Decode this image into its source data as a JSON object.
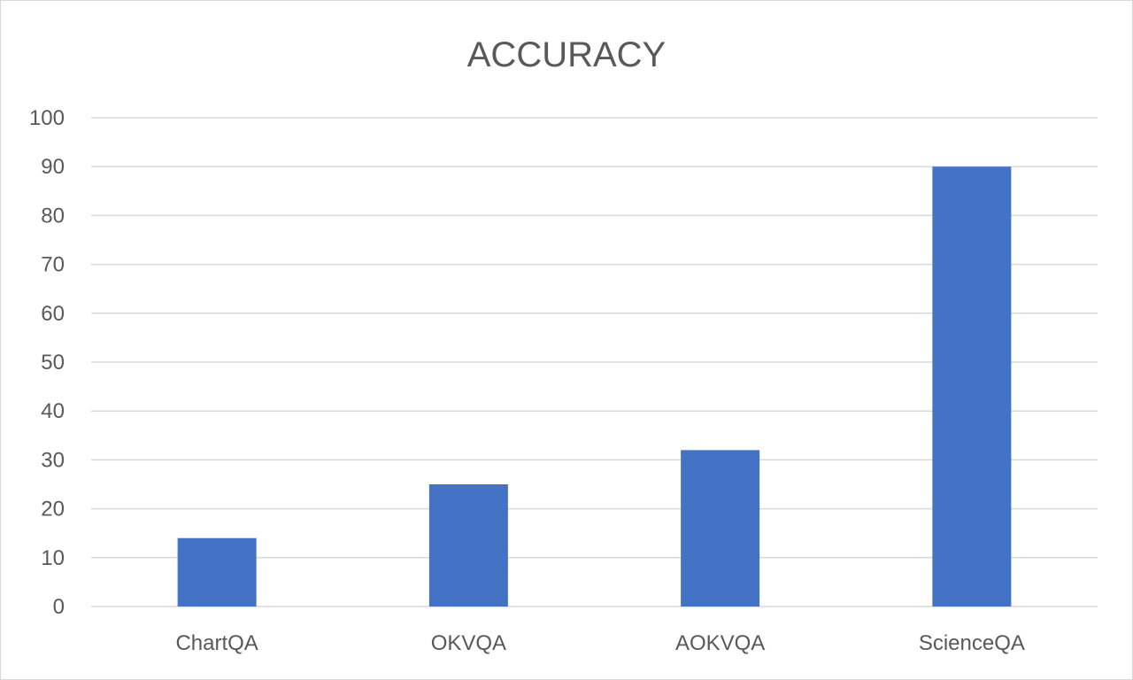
{
  "chart_data": {
    "type": "bar",
    "title": "ACCURACY",
    "xlabel": "",
    "ylabel": "",
    "categories": [
      "ChartQA",
      "OKVQA",
      "AOKVQA",
      "ScienceQA"
    ],
    "values": [
      14,
      25,
      32,
      90
    ],
    "ylim": [
      0,
      100
    ],
    "yticks": [
      0,
      10,
      20,
      30,
      40,
      50,
      60,
      70,
      80,
      90,
      100
    ],
    "ytick_labels": [
      "0",
      "10",
      "20",
      "30",
      "40",
      "50",
      "60",
      "70",
      "80",
      "90",
      "100"
    ],
    "grid": true,
    "legend": "none",
    "bar_color": "#4472C4",
    "grid_color": "#D9D9D9",
    "text_color": "#595959"
  }
}
